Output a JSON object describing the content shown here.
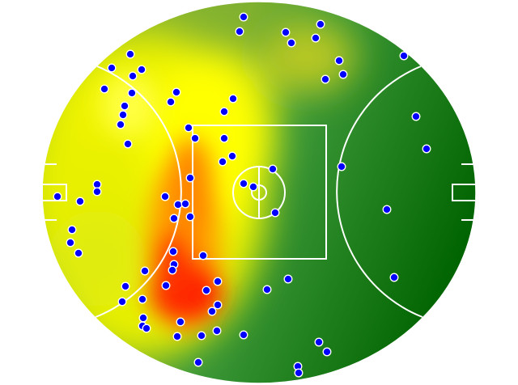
{
  "diagram": {
    "kind": "AFL oval heatmap with event markers",
    "colors": {
      "base_green": "#0a6e14",
      "mid_green": "#3f9a3a",
      "yellow": "#ffff00",
      "orange": "#ff9900",
      "red": "#ff0000",
      "marker_fill": "#0000ff",
      "marker_stroke": "#ffffff",
      "lines": "#ffffff"
    },
    "marker_icon": "blue-dot",
    "marker_count": 79
  }
}
